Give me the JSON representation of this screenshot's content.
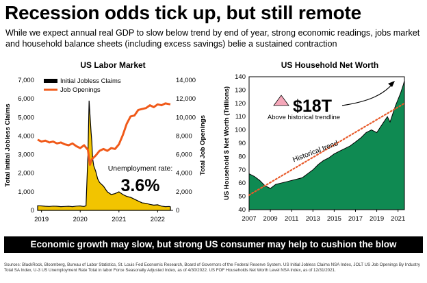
{
  "header": {
    "title": "Recession odds tick up, but still remote",
    "subtitle": "While we expect annual real GDP to slow below trend by end of year, strong economic readings, jobs market and household balance sheets (including excess savings) belie a sustained contraction"
  },
  "banner": {
    "text": "Economic growth may slow, but strong US consumer may help to cushion the blow"
  },
  "source": {
    "text": "Sources: BlackRock, Bloomberg, Bureau of Labor Statistics, St. Louis Fed Economic Research, Board of Governors of the Federal Reserve System. US Initial Jobless Claims NSA Index, JOLT US Job Openings By Industry Total SA Index, U-3 US Unemployment Rate Total in labor Force Seasonally Adjusted Index, as of 4/30/2022. US FOF Households Net Worth Level NSA Index, as of 12/31/2021."
  },
  "colors": {
    "claims": "#f2c400",
    "claims_edge": "#000000",
    "openings": "#f05a1a",
    "networth": "#0f8a52",
    "trend": "#e85a2a",
    "arrow": "#f4a7b9"
  },
  "chart_data": [
    {
      "type": "area",
      "title": "US Labor Market",
      "ylabel_left": "Total Initial Jobless Claims",
      "ylabel_right": "Total Job Openings",
      "ylim_left": [
        0,
        7000
      ],
      "ylim_right": [
        0,
        14000
      ],
      "xlim": [
        2018.9,
        2022.4
      ],
      "x_ticks": [
        "2019",
        "2020",
        "2021",
        "2022"
      ],
      "y_ticks_left": [
        "0",
        "1,000",
        "2,000",
        "3,000",
        "4,000",
        "5,000",
        "6,000",
        "7,000"
      ],
      "y_ticks_right": [
        "0",
        "2,000",
        "4,000",
        "6,000",
        "8,000",
        "10,000",
        "12,000",
        "14,000"
      ],
      "legend_position": "top-left",
      "series": [
        {
          "name": "Initial Jobless Claims",
          "type": "area",
          "axis": "left",
          "x": [
            2018.9,
            2019.0,
            2019.1,
            2019.2,
            2019.3,
            2019.4,
            2019.5,
            2019.6,
            2019.7,
            2019.8,
            2019.9,
            2020.0,
            2020.05,
            2020.1,
            2020.15,
            2020.2,
            2020.23,
            2020.25,
            2020.28,
            2020.3,
            2020.32,
            2020.35,
            2020.4,
            2020.45,
            2020.5,
            2020.6,
            2020.7,
            2020.8,
            2020.9,
            2021.0,
            2021.1,
            2021.2,
            2021.3,
            2021.4,
            2021.5,
            2021.6,
            2021.7,
            2021.8,
            2021.9,
            2022.0,
            2022.1,
            2022.2,
            2022.3,
            2022.33
          ],
          "values": [
            250,
            240,
            220,
            210,
            230,
            220,
            200,
            210,
            220,
            200,
            230,
            240,
            220,
            210,
            250,
            3000,
            5900,
            5200,
            4200,
            3700,
            2800,
            2400,
            2100,
            1700,
            1500,
            1300,
            1000,
            850,
            900,
            1000,
            850,
            750,
            700,
            600,
            500,
            400,
            380,
            320,
            280,
            300,
            230,
            200,
            210,
            190
          ]
        },
        {
          "name": "Job Openings",
          "type": "line",
          "axis": "right",
          "x": [
            2018.9,
            2019.0,
            2019.1,
            2019.2,
            2019.3,
            2019.4,
            2019.5,
            2019.6,
            2019.7,
            2019.8,
            2019.9,
            2020.0,
            2020.1,
            2020.2,
            2020.25,
            2020.3,
            2020.4,
            2020.5,
            2020.6,
            2020.7,
            2020.8,
            2020.9,
            2021.0,
            2021.1,
            2021.2,
            2021.3,
            2021.4,
            2021.5,
            2021.6,
            2021.7,
            2021.8,
            2021.9,
            2022.0,
            2022.1,
            2022.2,
            2022.33
          ],
          "values": [
            7600,
            7400,
            7500,
            7300,
            7400,
            7200,
            7300,
            7100,
            7000,
            7200,
            6900,
            6700,
            7000,
            6500,
            4900,
            5500,
            5900,
            6400,
            6600,
            6400,
            6700,
            6600,
            7100,
            8100,
            9300,
            10100,
            10200,
            10800,
            10900,
            11000,
            11300,
            11100,
            11400,
            11300,
            11500,
            11400
          ]
        }
      ],
      "annotations": [
        {
          "text": "Unemployment rate:",
          "value": "3.6%"
        }
      ]
    },
    {
      "type": "area",
      "title": "US Household Net Worth",
      "ylabel": "US Household $ Net Worth (Trillions)",
      "ylim": [
        40,
        140
      ],
      "xlim": [
        2007,
        2021.6
      ],
      "x_ticks": [
        "2007",
        "2009",
        "2011",
        "2013",
        "2015",
        "2017",
        "2019",
        "2021"
      ],
      "y_ticks": [
        "40",
        "50",
        "60",
        "70",
        "80",
        "90",
        "100",
        "110",
        "120",
        "130",
        "140"
      ],
      "series": [
        {
          "name": "",
          "type": "area",
          "x": [
            2007.0,
            2007.5,
            2008.0,
            2008.5,
            2009.0,
            2009.5,
            2010.0,
            2010.5,
            2011.0,
            2011.5,
            2012.0,
            2012.5,
            2013.0,
            2013.5,
            2014.0,
            2014.5,
            2015.0,
            2015.5,
            2016.0,
            2016.5,
            2017.0,
            2017.5,
            2018.0,
            2018.5,
            2019.0,
            2019.5,
            2020.0,
            2020.25,
            2020.5,
            2020.75,
            2021.0,
            2021.25,
            2021.5,
            2021.75
          ],
          "values": [
            67,
            65,
            62,
            58,
            56,
            59,
            60,
            61,
            62,
            63,
            64,
            67,
            70,
            74,
            77,
            79,
            82,
            84,
            86,
            88,
            91,
            94,
            98,
            100,
            98,
            104,
            110,
            106,
            112,
            118,
            123,
            128,
            134,
            137
          ]
        },
        {
          "name": "Historical trend",
          "type": "trendline",
          "x": [
            2007,
            2021.6
          ],
          "values": [
            51,
            120
          ]
        }
      ],
      "annotations": [
        {
          "value": "$18T",
          "text": "Above historical trendline"
        },
        {
          "text": "Historical trend"
        }
      ]
    }
  ]
}
